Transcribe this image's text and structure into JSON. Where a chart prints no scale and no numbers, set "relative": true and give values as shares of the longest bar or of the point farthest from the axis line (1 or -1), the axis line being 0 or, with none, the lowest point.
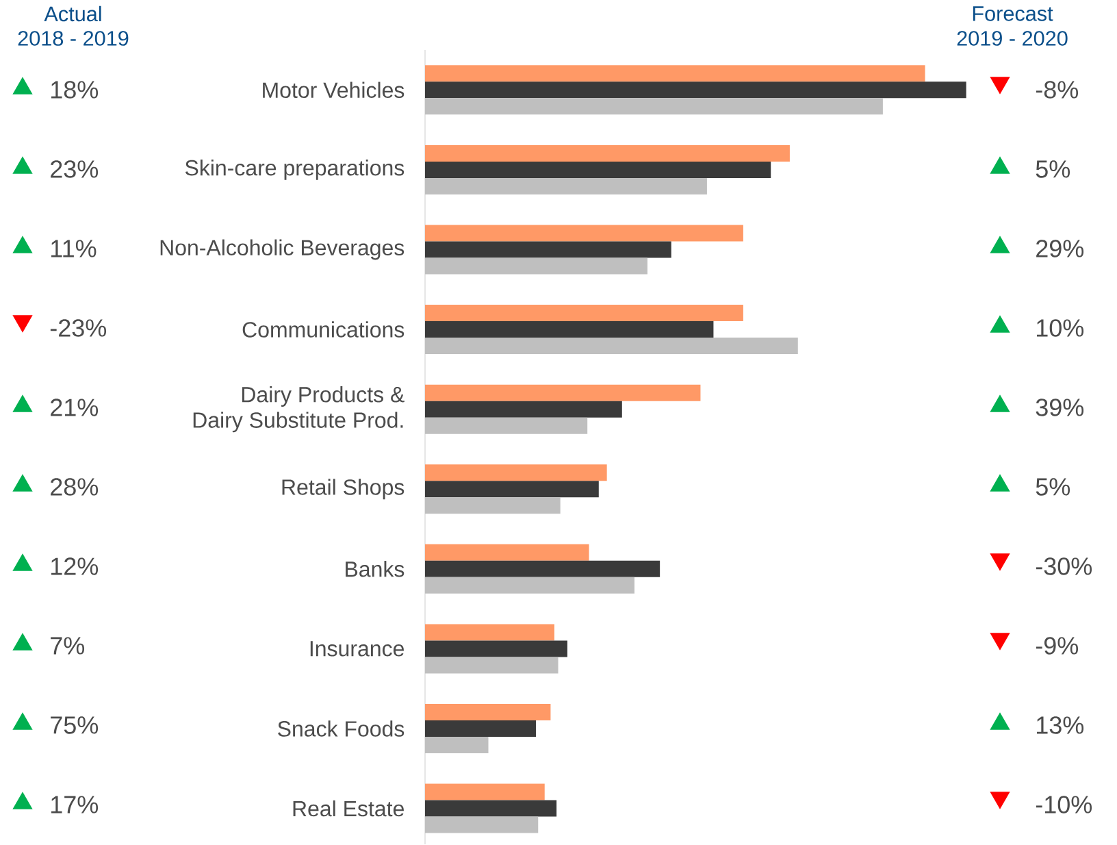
{
  "chart_data": {
    "type": "bar",
    "orientation": "horizontal",
    "relative": true,
    "categories": [
      "Motor Vehicles",
      "Skin-care preparations",
      "Non-Alcoholic Beverages",
      "Communications",
      "Dairy Products & Dairy Substitute Prod.",
      "Retail Shops",
      "Banks",
      "Insurance",
      "Snack Foods",
      "Real Estate"
    ],
    "series": [
      {
        "color": "#ff9966",
        "values": [
          0.924,
          0.674,
          0.588,
          0.588,
          0.509,
          0.336,
          0.303,
          0.239,
          0.232,
          0.221
        ]
      },
      {
        "color": "#3a3a3a",
        "values": [
          1.0,
          0.639,
          0.455,
          0.533,
          0.364,
          0.321,
          0.434,
          0.263,
          0.205,
          0.243
        ]
      },
      {
        "color": "#bfbfbf",
        "values": [
          0.846,
          0.521,
          0.411,
          0.689,
          0.3,
          0.25,
          0.387,
          0.246,
          0.117,
          0.209
        ]
      }
    ],
    "annotations": [
      "Actual",
      "2018 - 2019",
      "Forecast",
      "2019 - 2020",
      "18%",
      "23%",
      "11%",
      "-23%",
      "21%",
      "28%",
      "12%",
      "7%",
      "75%",
      "17%",
      "-8%",
      "5%",
      "29%",
      "10%",
      "39%",
      "5%",
      "-30%",
      "-9%",
      "13%",
      "-10%"
    ],
    "stacked": false
  }
}
